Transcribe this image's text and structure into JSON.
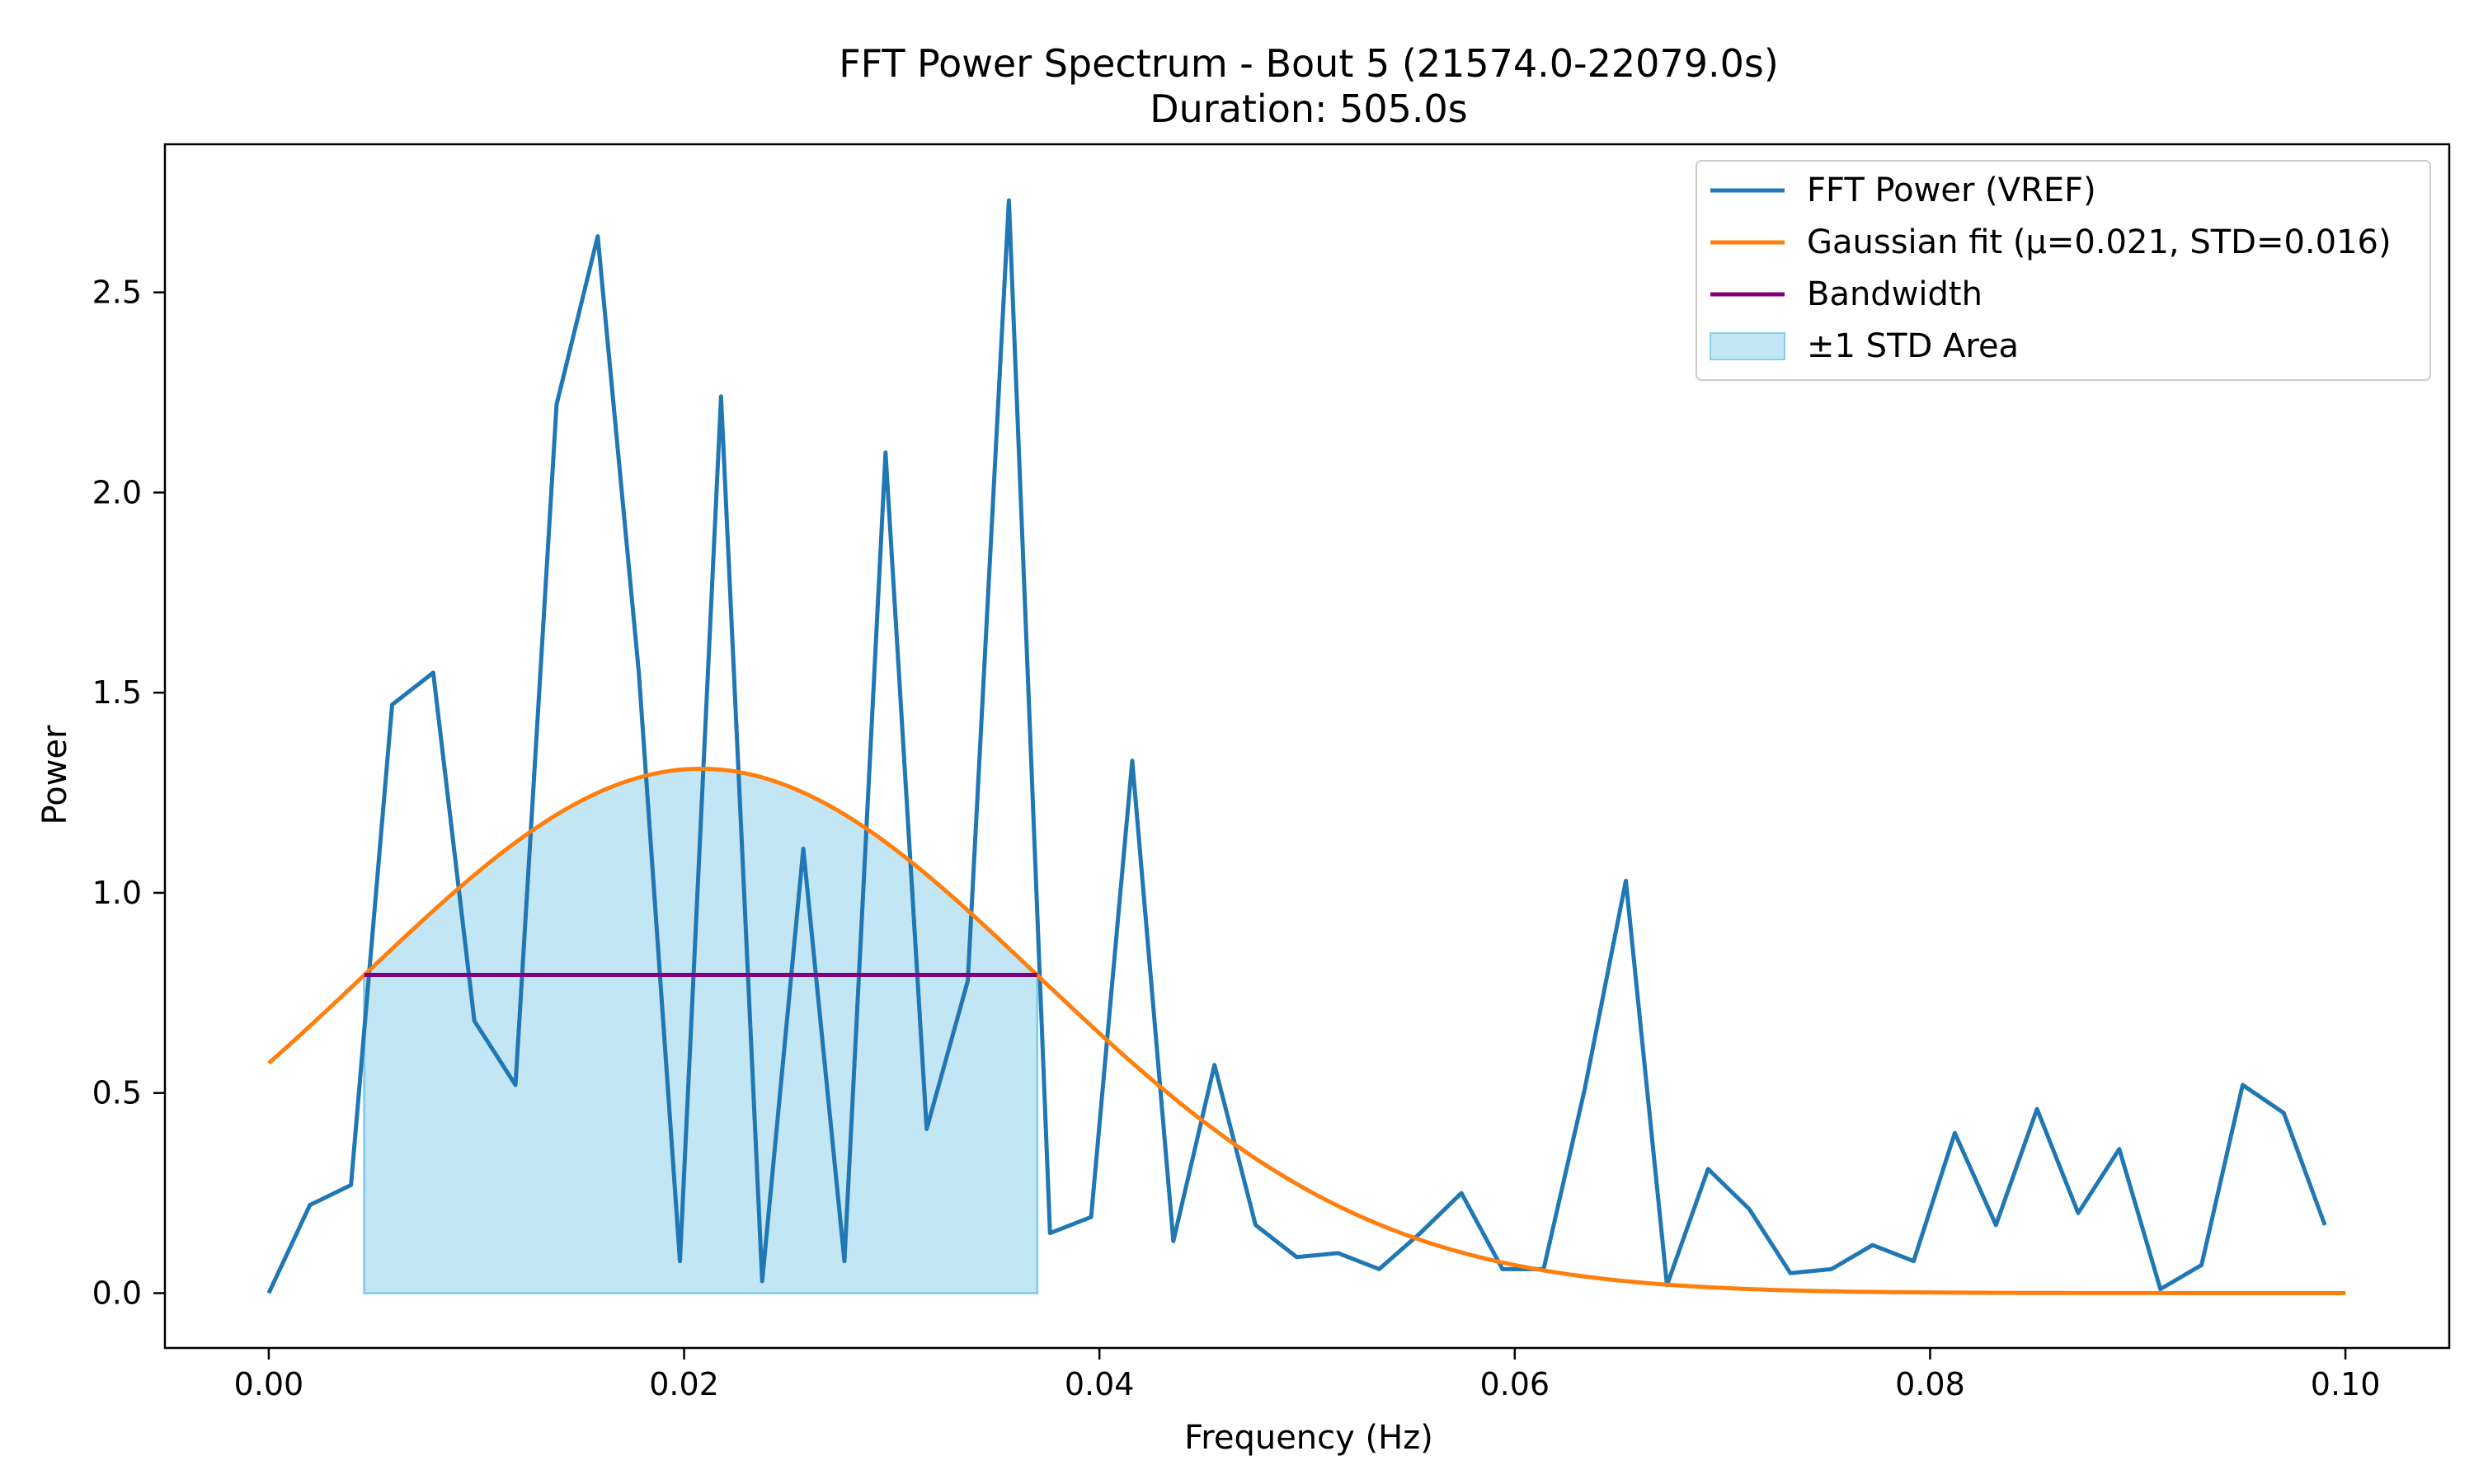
{
  "chart_data": {
    "type": "line",
    "title": "FFT Power Spectrum - Bout 5 (21574.0-22079.0s)",
    "subtitle": "Duration: 505.0s",
    "xlabel": "Frequency (Hz)",
    "ylabel": "Power",
    "xlim": [
      -0.005,
      0.105
    ],
    "ylim": [
      -0.137,
      2.87
    ],
    "xticks": [
      0.0,
      0.02,
      0.04,
      0.06,
      0.08,
      0.1
    ],
    "xtick_labels": [
      "0.00",
      "0.02",
      "0.04",
      "0.06",
      "0.08",
      "0.10"
    ],
    "yticks": [
      0.0,
      0.5,
      1.0,
      1.5,
      2.0,
      2.5
    ],
    "ytick_labels": [
      "0.0",
      "0.5",
      "1.0",
      "1.5",
      "2.0",
      "2.5"
    ],
    "grid": false,
    "legend_position": "top-right",
    "legend": [
      "FFT Power (VREF)",
      "Gaussian fit (μ=0.021, STD=0.016)",
      "Bandwidth",
      "±1 STD Area"
    ],
    "colors": {
      "fft": "#1f77b4",
      "gaussian": "#ff7f0e",
      "bandwidth": "#800080",
      "std_area_fill": "#87ceeb",
      "axes": "#000000"
    },
    "series": [
      {
        "name": "FFT Power (VREF)",
        "x": [
          0.0,
          0.00198,
          0.00396,
          0.00594,
          0.00792,
          0.0099,
          0.01188,
          0.01386,
          0.01584,
          0.01782,
          0.0198,
          0.02178,
          0.02376,
          0.02574,
          0.02772,
          0.0297,
          0.03168,
          0.03366,
          0.03564,
          0.03762,
          0.0396,
          0.04158,
          0.04356,
          0.04554,
          0.04752,
          0.0495,
          0.05149,
          0.05347,
          0.05545,
          0.05743,
          0.05941,
          0.06139,
          0.06337,
          0.06535,
          0.06733,
          0.06931,
          0.07129,
          0.07327,
          0.07525,
          0.07723,
          0.07921,
          0.08119,
          0.08317,
          0.08515,
          0.08713,
          0.08911,
          0.09109,
          0.09307,
          0.09505,
          0.09703,
          0.09901
        ],
        "values": [
          0.0,
          0.22,
          0.27,
          1.47,
          1.55,
          0.68,
          0.52,
          2.22,
          2.64,
          1.55,
          0.08,
          2.24,
          0.03,
          1.11,
          0.08,
          2.1,
          0.41,
          0.78,
          2.73,
          0.15,
          0.19,
          1.33,
          0.13,
          0.57,
          0.17,
          0.09,
          0.1,
          0.06,
          0.15,
          0.25,
          0.06,
          0.06,
          0.51,
          1.03,
          0.02,
          0.31,
          0.21,
          0.05,
          0.06,
          0.12,
          0.08,
          0.4,
          0.17,
          0.46,
          0.2,
          0.36,
          0.01,
          0.07,
          0.52,
          0.45,
          0.17
        ]
      },
      {
        "name": "Gaussian fit (μ=0.021, STD=0.016)",
        "amplitude": 1.31,
        "mu": 0.0208,
        "sigma": 0.0162,
        "x_range": [
          0.0,
          0.1
        ]
      },
      {
        "name": "Bandwidth",
        "x": [
          0.0046,
          0.037
        ],
        "values": [
          0.795,
          0.795
        ]
      },
      {
        "name": "±1 STD Area",
        "x_range": [
          0.0046,
          0.037
        ],
        "y_bottom": 0.0
      }
    ]
  }
}
